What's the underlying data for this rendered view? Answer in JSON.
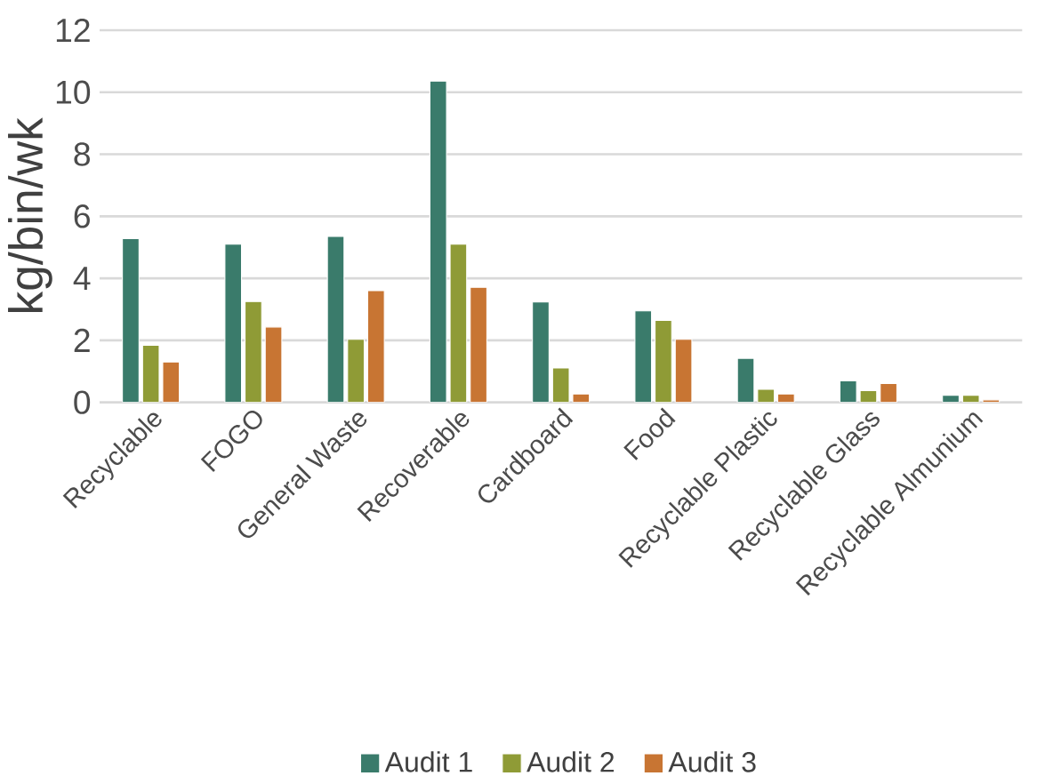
{
  "chart_data": {
    "type": "bar",
    "ylabel": "kg/bin/wk",
    "categories": [
      "Recyclable",
      "FOGO",
      "General Waste",
      "Recoverable",
      "Cardboard",
      "Food",
      "Recyclable Plastic",
      "Recyclable Glass",
      "Recyclable Almunium"
    ],
    "series": [
      {
        "name": "Audit 1",
        "color": "#3a7b6b",
        "values": [
          5.28,
          5.1,
          5.35,
          10.36,
          3.24,
          2.95,
          1.42,
          0.69,
          0.23
        ]
      },
      {
        "name": "Audit 2",
        "color": "#8f9b36",
        "values": [
          1.84,
          3.25,
          2.03,
          5.1,
          1.11,
          2.64,
          0.42,
          0.38,
          0.23
        ]
      },
      {
        "name": "Audit 3",
        "color": "#c87533",
        "values": [
          1.3,
          2.43,
          3.6,
          3.71,
          0.27,
          2.03,
          0.27,
          0.61,
          0.08
        ]
      }
    ],
    "ylim": [
      0,
      12
    ],
    "yticks": [
      0,
      2,
      4,
      6,
      8,
      10,
      12
    ],
    "grid": "y",
    "legend": "bottom"
  }
}
